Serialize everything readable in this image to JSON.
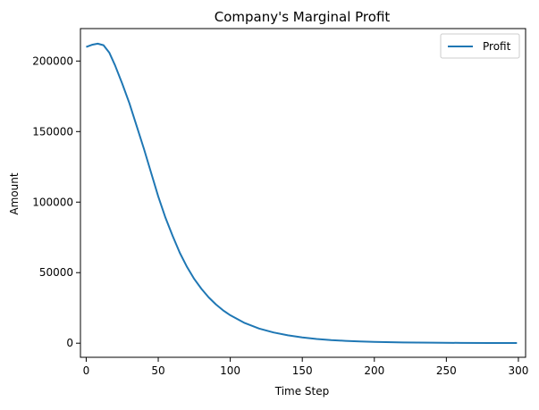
{
  "chart_data": {
    "type": "line",
    "title": "Company's Marginal Profit",
    "xlabel": "Time Step",
    "ylabel": "Amount",
    "xlim": [
      -4,
      305
    ],
    "ylim": [
      -10000,
      223000
    ],
    "x_ticks": [
      0,
      50,
      100,
      150,
      200,
      250,
      300
    ],
    "y_ticks": [
      0,
      50000,
      100000,
      150000,
      200000
    ],
    "x_tick_labels": [
      "0",
      "50",
      "100",
      "150",
      "200",
      "250",
      "300"
    ],
    "y_tick_labels": [
      "0",
      "50000",
      "100000",
      "150000",
      "200000"
    ],
    "grid": false,
    "legend": {
      "placement": "top-right",
      "entries": [
        "Profit"
      ]
    },
    "series": [
      {
        "name": "Profit",
        "color": "#1f77b4",
        "x": [
          0,
          4,
          8,
          12,
          16,
          20,
          25,
          30,
          35,
          40,
          45,
          50,
          55,
          60,
          65,
          70,
          75,
          80,
          85,
          90,
          95,
          100,
          110,
          120,
          130,
          140,
          150,
          160,
          170,
          180,
          190,
          200,
          220,
          240,
          260,
          280,
          299
        ],
        "y": [
          210000,
          211500,
          212300,
          211200,
          206000,
          197000,
          184000,
          170000,
          154000,
          138000,
          121000,
          104000,
          89000,
          76000,
          64000,
          54000,
          45500,
          38500,
          32500,
          27500,
          23300,
          19800,
          14300,
          10400,
          7600,
          5600,
          4100,
          3000,
          2200,
          1650,
          1250,
          950,
          550,
          350,
          220,
          150,
          100
        ]
      }
    ]
  }
}
